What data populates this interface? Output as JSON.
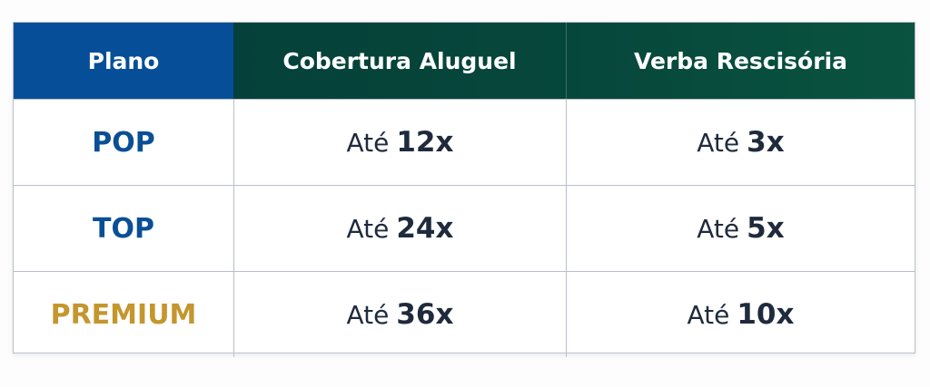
{
  "colors": {
    "header_plan": "#064f98",
    "header_other": "#05463a",
    "plan_blue": "#0a4f95",
    "plan_gold": "#c4962e",
    "text": "#1f2a3c"
  },
  "headers": [
    "Plano",
    "Cobertura Aluguel",
    "Verba Rescisória"
  ],
  "rows": [
    {
      "plan": "POP",
      "plan_color": "#0a4f95",
      "rent_prefix": "Até",
      "rent": "12x",
      "sev_prefix": "Até",
      "sev": "3x"
    },
    {
      "plan": "TOP",
      "plan_color": "#0a4f95",
      "rent_prefix": "Até",
      "rent": "24x",
      "sev_prefix": "Até",
      "sev": "5x"
    },
    {
      "plan": "PREMIUM",
      "plan_color": "#c4962e",
      "rent_prefix": "Até",
      "rent": "36x",
      "sev_prefix": "Até",
      "sev": "10x"
    }
  ]
}
